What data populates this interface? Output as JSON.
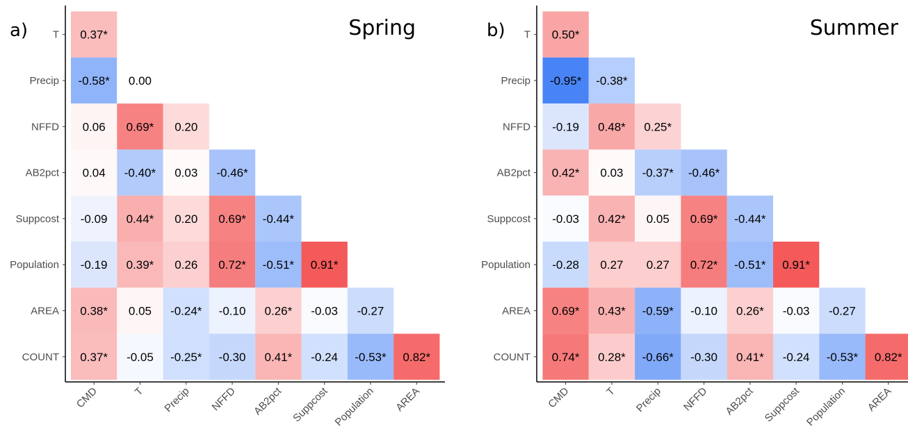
{
  "chart_data": [
    {
      "type": "heatmap",
      "panel_label": "a)",
      "title": "Spring",
      "x_categories": [
        "CMD",
        "T",
        "Precip",
        "NFFD",
        "AB2pct",
        "Suppcost",
        "Population",
        "AREA"
      ],
      "y_categories": [
        "T",
        "Precip",
        "NFFD",
        "AB2pct",
        "Suppcost",
        "Population",
        "AREA",
        "COUNT"
      ],
      "values": [
        [
          0.37
        ],
        [
          -0.58,
          0.0
        ],
        [
          0.06,
          0.69,
          0.2
        ],
        [
          0.04,
          -0.4,
          0.03,
          -0.46
        ],
        [
          -0.09,
          0.44,
          0.2,
          0.69,
          -0.44
        ],
        [
          -0.19,
          0.39,
          0.26,
          0.72,
          -0.51,
          0.91
        ],
        [
          0.38,
          0.05,
          -0.24,
          -0.1,
          0.26,
          -0.03,
          -0.27
        ],
        [
          0.37,
          -0.05,
          -0.25,
          -0.3,
          0.41,
          -0.24,
          -0.53,
          0.82
        ]
      ],
      "labels": [
        [
          "0.37*"
        ],
        [
          "-0.58*",
          "0.00"
        ],
        [
          "0.06",
          "0.69*",
          "0.20"
        ],
        [
          "0.04",
          "-0.40*",
          "0.03",
          "-0.46*"
        ],
        [
          "-0.09",
          "0.44*",
          "0.20",
          "0.69*",
          "-0.44*"
        ],
        [
          "-0.19",
          "0.39*",
          "0.26",
          "0.72*",
          "-0.51*",
          "0.91*"
        ],
        [
          "0.38*",
          "0.05",
          "-0.24*",
          "-0.10",
          "0.26*",
          "-0.03",
          "-0.27"
        ],
        [
          "0.37*",
          "-0.05",
          "-0.25*",
          "-0.30",
          "0.41*",
          "-0.24",
          "-0.53*",
          "0.82*"
        ]
      ],
      "color_scale": {
        "negative": "#3f7df5",
        "zero": "#ffffff",
        "positive": "#f34a4a",
        "range": [
          -1,
          1
        ]
      }
    },
    {
      "type": "heatmap",
      "panel_label": "b)",
      "title": "Summer",
      "x_categories": [
        "CMD",
        "T",
        "Precip",
        "NFFD",
        "AB2pct",
        "Suppcost",
        "Population",
        "AREA"
      ],
      "y_categories": [
        "T",
        "Precip",
        "NFFD",
        "AB2pct",
        "Suppcost",
        "Population",
        "AREA",
        "COUNT"
      ],
      "values": [
        [
          0.5
        ],
        [
          -0.95,
          -0.38
        ],
        [
          -0.19,
          0.48,
          0.25
        ],
        [
          0.42,
          0.03,
          -0.37,
          -0.46
        ],
        [
          -0.03,
          0.42,
          0.05,
          0.69,
          -0.44
        ],
        [
          -0.28,
          0.27,
          0.27,
          0.72,
          -0.51,
          0.91
        ],
        [
          0.69,
          0.43,
          -0.59,
          -0.1,
          0.26,
          -0.03,
          -0.27
        ],
        [
          0.74,
          0.28,
          -0.66,
          -0.3,
          0.41,
          -0.24,
          -0.53,
          0.82
        ]
      ],
      "labels": [
        [
          "0.50*"
        ],
        [
          "-0.95*",
          "-0.38*"
        ],
        [
          "-0.19",
          "0.48*",
          "0.25*"
        ],
        [
          "0.42*",
          "0.03",
          "-0.37*",
          "-0.46*"
        ],
        [
          "-0.03",
          "0.42*",
          "0.05",
          "0.69*",
          "-0.44*"
        ],
        [
          "-0.28",
          "0.27",
          "0.27",
          "0.72*",
          "-0.51*",
          "0.91*"
        ],
        [
          "0.69*",
          "0.43*",
          "-0.59*",
          "-0.10",
          "0.26*",
          "-0.03",
          "-0.27"
        ],
        [
          "0.74*",
          "0.28*",
          "-0.66*",
          "-0.30",
          "0.41*",
          "-0.24",
          "-0.53*",
          "0.82*"
        ]
      ],
      "color_scale": {
        "negative": "#3f7df5",
        "zero": "#ffffff",
        "positive": "#f34a4a",
        "range": [
          -1,
          1
        ]
      }
    }
  ]
}
